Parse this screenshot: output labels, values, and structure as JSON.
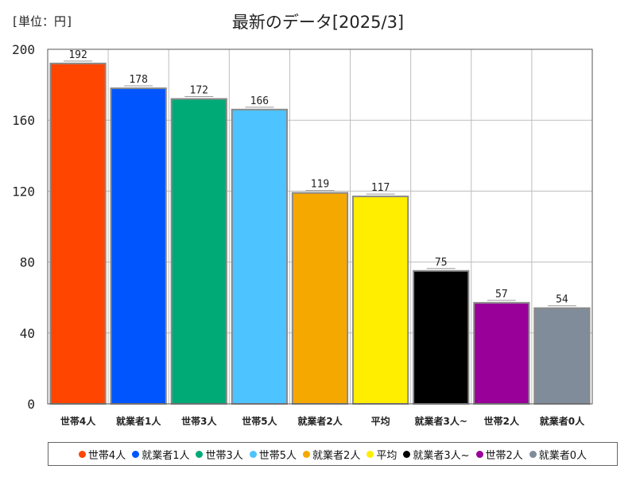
{
  "chart_data": {
    "type": "bar",
    "title": "最新のデータ[2025/3]",
    "unit_label": "[単位：円]",
    "categories": [
      "世帯4人",
      "就業者1人",
      "世帯3人",
      "世帯5人",
      "就業者2人",
      "平均",
      "就業者3人~",
      "世帯2人",
      "就業者0人"
    ],
    "values": [
      192,
      178,
      172,
      166,
      119,
      117,
      75,
      57,
      54
    ],
    "colors": [
      "#ff4500",
      "#0055ff",
      "#00aa77",
      "#4dc3ff",
      "#f5a800",
      "#ffee00",
      "#000000",
      "#990099",
      "#808c99"
    ],
    "ylim": [
      0,
      200
    ],
    "yticks": [
      0,
      40,
      80,
      120,
      160,
      200
    ],
    "grid": true,
    "legend_position": "bottom"
  }
}
